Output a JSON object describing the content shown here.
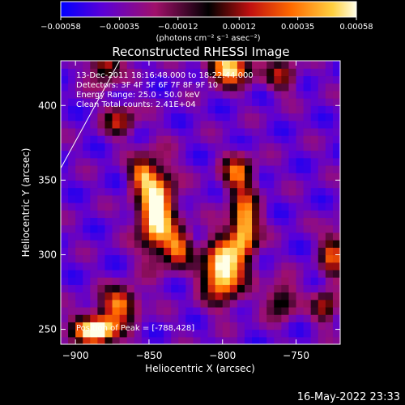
{
  "chart_data": {
    "type": "heatmap",
    "title": "Reconstructed RHESSI Image",
    "xlabel": "Heliocentric X (arcsec)",
    "ylabel": "Heliocentric Y (arcsec)",
    "xlim": [
      -910,
      -720
    ],
    "ylim": [
      240,
      430
    ],
    "x_ticks": [
      -900,
      -850,
      -800,
      -750
    ],
    "x_tick_labels": [
      "−900",
      "−850",
      "−800",
      "−750"
    ],
    "y_ticks": [
      250,
      300,
      350,
      400
    ],
    "y_tick_labels": [
      "250",
      "300",
      "350",
      "400"
    ],
    "colorbar": {
      "min": -0.00058,
      "max": 0.00058,
      "ticks": [
        -0.00058,
        -0.00035,
        -0.00012,
        0.00012,
        0.00035,
        0.00058
      ],
      "tick_labels": [
        "−0.00058",
        "−0.00035",
        "−0.00012",
        "0.00012",
        "0.00035",
        "0.00058"
      ],
      "unit_label": "(photons cm⁻² s⁻¹ asec⁻²)",
      "colors": [
        "#0000ff",
        "#5a00d8",
        "#a0106a",
        "#000000",
        "#c01010",
        "#ff6a00",
        "#ffd040",
        "#ffffe8"
      ]
    },
    "limb": [
      [
        -910,
        358
      ],
      [
        -870,
        430
      ]
    ],
    "peak": [
      -788,
      428
    ],
    "annotations": [
      "13-Dec-2011 18:16:48.000 to 18:22:44.000",
      "Detectors: 3F 4F 5F 6F 7F 8F 9F 10",
      "Energy Range: 25.0 - 50.0 keV",
      "Clean     Total counts: 2.41E+04",
      "Position of Peak = [-788,428]"
    ]
  },
  "footer": {
    "timestamp": "16-May-2022 23:33"
  },
  "colors": {
    "background": "#000000",
    "text": "#ffffff"
  }
}
